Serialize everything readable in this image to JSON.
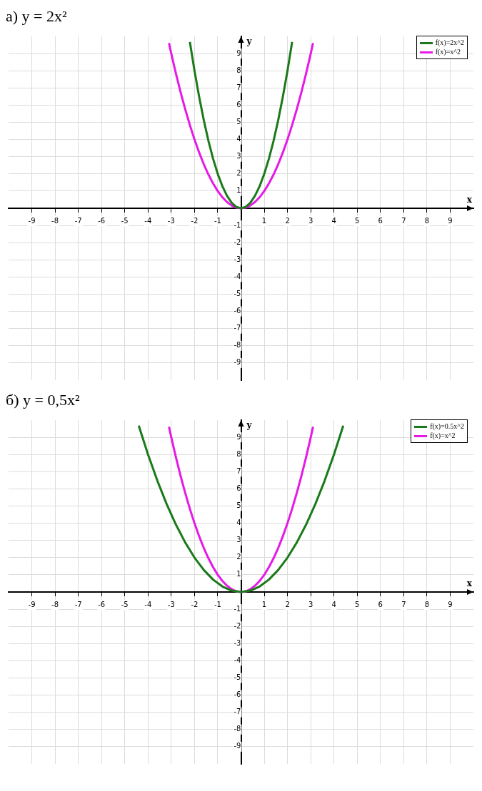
{
  "chart_data": [
    {
      "type": "line",
      "title": "а) y = 2x²",
      "xlabel": "x",
      "ylabel": "y",
      "xlim": [
        -10,
        10
      ],
      "ylim": [
        -10,
        10
      ],
      "xticks": [
        -9,
        -8,
        -7,
        -6,
        -5,
        -4,
        -3,
        -2,
        -1,
        1,
        2,
        3,
        4,
        5,
        6,
        7,
        8,
        9
      ],
      "yticks": [
        -9,
        -8,
        -7,
        -6,
        -5,
        -4,
        -3,
        -2,
        -1,
        1,
        2,
        3,
        4,
        5,
        6,
        7,
        8,
        9
      ],
      "grid": true,
      "legend": "top right",
      "series": [
        {
          "name": "f(x)=2x^2",
          "color": "#1a7a1a",
          "x": [
            -2.2,
            -2,
            -1.8,
            -1.6,
            -1.4,
            -1.2,
            -1,
            -0.8,
            -0.6,
            -0.4,
            -0.2,
            0,
            0.2,
            0.4,
            0.6,
            0.8,
            1,
            1.2,
            1.4,
            1.6,
            1.8,
            2,
            2.2
          ],
          "values": [
            9.68,
            8,
            6.48,
            5.12,
            3.92,
            2.88,
            2,
            1.28,
            0.72,
            0.32,
            0.08,
            0,
            0.08,
            0.32,
            0.72,
            1.28,
            2,
            2.88,
            3.92,
            5.12,
            6.48,
            8,
            9.68
          ]
        },
        {
          "name": "f(x)=x^2",
          "color": "#e619e6",
          "x": [
            -3.1,
            -3,
            -2.8,
            -2.6,
            -2.4,
            -2.2,
            -2,
            -1.8,
            -1.6,
            -1.4,
            -1.2,
            -1,
            -0.8,
            -0.6,
            -0.4,
            -0.2,
            0,
            0.2,
            0.4,
            0.6,
            0.8,
            1,
            1.2,
            1.4,
            1.6,
            1.8,
            2,
            2.2,
            2.4,
            2.6,
            2.8,
            3,
            3.1
          ],
          "values": [
            9.61,
            9,
            7.84,
            6.76,
            5.76,
            4.84,
            4,
            3.24,
            2.56,
            1.96,
            1.44,
            1,
            0.64,
            0.36,
            0.16,
            0.04,
            0,
            0.04,
            0.16,
            0.36,
            0.64,
            1,
            1.44,
            1.96,
            2.56,
            3.24,
            4,
            4.84,
            5.76,
            6.76,
            7.84,
            9,
            9.61
          ]
        }
      ]
    },
    {
      "type": "line",
      "title": "б) y = 0,5x²",
      "xlabel": "x",
      "ylabel": "y",
      "xlim": [
        -10,
        10
      ],
      "ylim": [
        -10,
        10
      ],
      "xticks": [
        -9,
        -8,
        -7,
        -6,
        -5,
        -4,
        -3,
        -2,
        -1,
        1,
        2,
        3,
        4,
        5,
        6,
        7,
        8,
        9
      ],
      "yticks": [
        -9,
        -8,
        -7,
        -6,
        -5,
        -4,
        -3,
        -2,
        -1,
        1,
        2,
        3,
        4,
        5,
        6,
        7,
        8,
        9
      ],
      "grid": true,
      "legend": "top right",
      "series": [
        {
          "name": "f(x)=0.5x^2",
          "color": "#1a7a1a",
          "x": [
            -4.4,
            -4,
            -3.6,
            -3.2,
            -2.8,
            -2.4,
            -2,
            -1.6,
            -1.2,
            -0.8,
            -0.4,
            0,
            0.4,
            0.8,
            1.2,
            1.6,
            2,
            2.4,
            2.8,
            3.2,
            3.6,
            4,
            4.4
          ],
          "values": [
            9.68,
            8,
            6.48,
            5.12,
            3.92,
            2.88,
            2,
            1.28,
            0.72,
            0.32,
            0.08,
            0,
            0.08,
            0.32,
            0.72,
            1.28,
            2,
            2.88,
            3.92,
            5.12,
            6.48,
            8,
            9.68
          ]
        },
        {
          "name": "f(x)=x^2",
          "color": "#e619e6",
          "x": [
            -3.1,
            -3,
            -2.8,
            -2.6,
            -2.4,
            -2.2,
            -2,
            -1.8,
            -1.6,
            -1.4,
            -1.2,
            -1,
            -0.8,
            -0.6,
            -0.4,
            -0.2,
            0,
            0.2,
            0.4,
            0.6,
            0.8,
            1,
            1.2,
            1.4,
            1.6,
            1.8,
            2,
            2.2,
            2.4,
            2.6,
            2.8,
            3,
            3.1
          ],
          "values": [
            9.61,
            9,
            7.84,
            6.76,
            5.76,
            4.84,
            4,
            3.24,
            2.56,
            1.96,
            1.44,
            1,
            0.64,
            0.36,
            0.16,
            0.04,
            0,
            0.04,
            0.16,
            0.36,
            0.64,
            1,
            1.44,
            1.96,
            2.56,
            3.24,
            4,
            4.84,
            5.76,
            6.76,
            7.84,
            9,
            9.61
          ]
        }
      ]
    }
  ]
}
